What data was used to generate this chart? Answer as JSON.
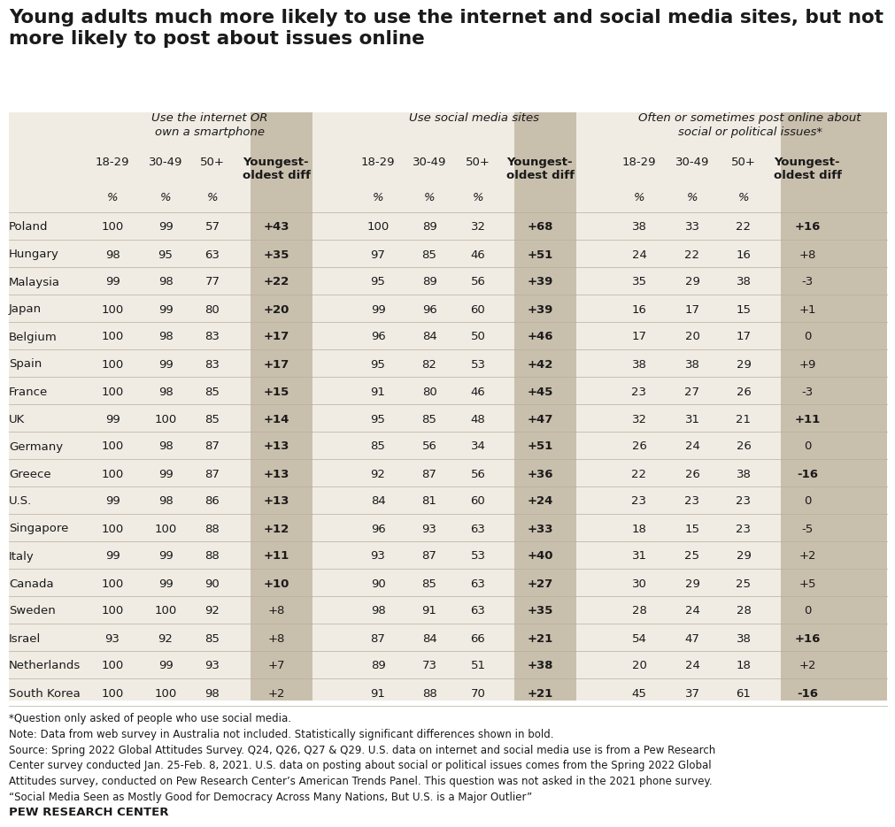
{
  "title": "Young adults much more likely to use the internet and social media sites, but not\nmore likely to post about issues online",
  "section_headers": [
    "Use the internet OR\nown a smartphone",
    "Use social media sites",
    "Often or sometimes post online about\nsocial or political issues*"
  ],
  "countries": [
    "Poland",
    "Hungary",
    "Malaysia",
    "Japan",
    "Belgium",
    "Spain",
    "France",
    "UK",
    "Germany",
    "Greece",
    "U.S.",
    "Singapore",
    "Italy",
    "Canada",
    "Sweden",
    "Israel",
    "Netherlands",
    "South Korea"
  ],
  "internet_data": [
    [
      100,
      99,
      57,
      "+43"
    ],
    [
      98,
      95,
      63,
      "+35"
    ],
    [
      99,
      98,
      77,
      "+22"
    ],
    [
      100,
      99,
      80,
      "+20"
    ],
    [
      100,
      98,
      83,
      "+17"
    ],
    [
      100,
      99,
      83,
      "+17"
    ],
    [
      100,
      98,
      85,
      "+15"
    ],
    [
      99,
      100,
      85,
      "+14"
    ],
    [
      100,
      98,
      87,
      "+13"
    ],
    [
      100,
      99,
      87,
      "+13"
    ],
    [
      99,
      98,
      86,
      "+13"
    ],
    [
      100,
      100,
      88,
      "+12"
    ],
    [
      99,
      99,
      88,
      "+11"
    ],
    [
      100,
      99,
      90,
      "+10"
    ],
    [
      100,
      100,
      92,
      "+8"
    ],
    [
      93,
      92,
      85,
      "+8"
    ],
    [
      100,
      99,
      93,
      "+7"
    ],
    [
      100,
      100,
      98,
      "+2"
    ]
  ],
  "social_data": [
    [
      100,
      89,
      32,
      "+68"
    ],
    [
      97,
      85,
      46,
      "+51"
    ],
    [
      95,
      89,
      56,
      "+39"
    ],
    [
      99,
      96,
      60,
      "+39"
    ],
    [
      96,
      84,
      50,
      "+46"
    ],
    [
      95,
      82,
      53,
      "+42"
    ],
    [
      91,
      80,
      46,
      "+45"
    ],
    [
      95,
      85,
      48,
      "+47"
    ],
    [
      85,
      56,
      34,
      "+51"
    ],
    [
      92,
      87,
      56,
      "+36"
    ],
    [
      84,
      81,
      60,
      "+24"
    ],
    [
      96,
      93,
      63,
      "+33"
    ],
    [
      93,
      87,
      53,
      "+40"
    ],
    [
      90,
      85,
      63,
      "+27"
    ],
    [
      98,
      91,
      63,
      "+35"
    ],
    [
      87,
      84,
      66,
      "+21"
    ],
    [
      89,
      73,
      51,
      "+38"
    ],
    [
      91,
      88,
      70,
      "+21"
    ]
  ],
  "post_data": [
    [
      38,
      33,
      22,
      "+16"
    ],
    [
      24,
      22,
      16,
      "+8"
    ],
    [
      35,
      29,
      38,
      "-3"
    ],
    [
      16,
      17,
      15,
      "+1"
    ],
    [
      17,
      20,
      17,
      "0"
    ],
    [
      38,
      38,
      29,
      "+9"
    ],
    [
      23,
      27,
      26,
      "-3"
    ],
    [
      32,
      31,
      21,
      "+11"
    ],
    [
      26,
      24,
      26,
      "0"
    ],
    [
      22,
      26,
      38,
      "-16"
    ],
    [
      23,
      23,
      23,
      "0"
    ],
    [
      18,
      15,
      23,
      "-5"
    ],
    [
      31,
      25,
      29,
      "+2"
    ],
    [
      30,
      29,
      25,
      "+5"
    ],
    [
      28,
      24,
      28,
      "0"
    ],
    [
      54,
      47,
      38,
      "+16"
    ],
    [
      20,
      24,
      18,
      "+2"
    ],
    [
      45,
      37,
      61,
      "-16"
    ]
  ],
  "internet_diff_bold": [
    true,
    true,
    true,
    true,
    true,
    true,
    true,
    true,
    true,
    true,
    true,
    true,
    true,
    true,
    false,
    false,
    false,
    false
  ],
  "social_diff_bold": [
    true,
    true,
    true,
    true,
    true,
    true,
    true,
    true,
    true,
    true,
    true,
    true,
    true,
    true,
    true,
    true,
    true,
    true
  ],
  "post_diff_bold": [
    true,
    false,
    false,
    false,
    false,
    false,
    false,
    true,
    false,
    true,
    false,
    false,
    false,
    false,
    false,
    true,
    false,
    true
  ],
  "footnote1": "*Question only asked of people who use social media.",
  "footnote2": "Note: Data from web survey in Australia not included. Statistically significant differences shown in bold.",
  "footnote3": "Source: Spring 2022 Global Attitudes Survey. Q24, Q26, Q27 & Q29. U.S. data on internet and social media use is from a Pew Research\nCenter survey conducted Jan. 25-Feb. 8, 2021. U.S. data on posting about social or political issues comes from the Spring 2022 Global\nAttitudes survey, conducted on Pew Research Center’s American Trends Panel. This question was not asked in the 2021 phone survey.\n“Social Media Seen as Mostly Good for Democracy Across Many Nations, But U.S. is a Major Outlier”",
  "brand": "PEW RESEARCH CENTER",
  "bg_color": "#f0ece4",
  "diff_col_bg": "#c9bfad",
  "white_bg": "#ffffff",
  "text_color": "#1a1a1a"
}
